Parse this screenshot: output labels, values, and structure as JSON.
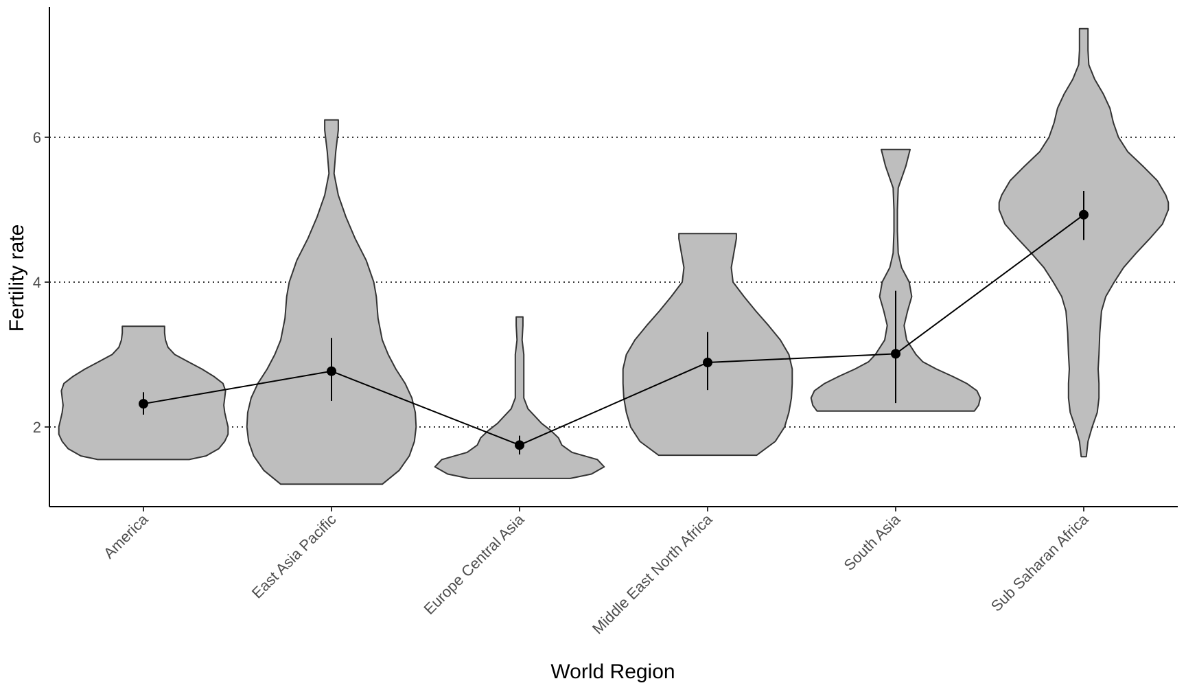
{
  "chart_data": {
    "type": "violin",
    "xlabel": "World Region",
    "ylabel": "Fertility rate",
    "ylim": [
      0.9,
      7.8
    ],
    "yticks": [
      2,
      4,
      6
    ],
    "grid": {
      "horizontal": "dotted",
      "vertical": false
    },
    "violin_fill": "#bebebe",
    "violin_stroke": "#333333",
    "line_color": "#000000",
    "categories": [
      "America",
      "East Asia Pacific",
      "Europe Central Asia",
      "Middle East North Africa",
      "South Asia",
      "Sub Saharan Africa"
    ],
    "means": [
      2.32,
      2.77,
      1.75,
      2.89,
      3.01,
      4.93
    ],
    "error_bars": [
      [
        2.17,
        2.48
      ],
      [
        2.36,
        3.23
      ],
      [
        1.62,
        1.88
      ],
      [
        2.51,
        3.31
      ],
      [
        2.33,
        3.88
      ],
      [
        4.58,
        5.26
      ]
    ],
    "violins": [
      {
        "min": 1.55,
        "max": 3.39,
        "profile": [
          [
            1.55,
            0.54
          ],
          [
            1.6,
            0.74
          ],
          [
            1.7,
            0.89
          ],
          [
            1.8,
            0.96
          ],
          [
            1.9,
            1.0
          ],
          [
            2.0,
            1.0
          ],
          [
            2.1,
            0.98
          ],
          [
            2.2,
            0.96
          ],
          [
            2.3,
            0.95
          ],
          [
            2.4,
            0.96
          ],
          [
            2.5,
            0.97
          ],
          [
            2.6,
            0.94
          ],
          [
            2.7,
            0.83
          ],
          [
            2.8,
            0.69
          ],
          [
            2.9,
            0.53
          ],
          [
            3.0,
            0.37
          ],
          [
            3.1,
            0.29
          ],
          [
            3.2,
            0.26
          ],
          [
            3.3,
            0.25
          ],
          [
            3.39,
            0.25
          ]
        ]
      },
      {
        "min": 1.21,
        "max": 6.24,
        "profile": [
          [
            1.21,
            0.6
          ],
          [
            1.4,
            0.8
          ],
          [
            1.6,
            0.92
          ],
          [
            1.8,
            0.98
          ],
          [
            2.0,
            1.0
          ],
          [
            2.2,
            0.99
          ],
          [
            2.4,
            0.95
          ],
          [
            2.6,
            0.87
          ],
          [
            2.8,
            0.76
          ],
          [
            3.0,
            0.67
          ],
          [
            3.2,
            0.6
          ],
          [
            3.5,
            0.55
          ],
          [
            3.8,
            0.53
          ],
          [
            4.0,
            0.5
          ],
          [
            4.3,
            0.41
          ],
          [
            4.6,
            0.28
          ],
          [
            4.9,
            0.17
          ],
          [
            5.2,
            0.08
          ],
          [
            5.5,
            0.03
          ],
          [
            5.8,
            0.05
          ],
          [
            6.1,
            0.08
          ],
          [
            6.24,
            0.08
          ]
        ]
      },
      {
        "min": 1.29,
        "max": 3.52,
        "profile": [
          [
            1.29,
            0.6
          ],
          [
            1.35,
            0.85
          ],
          [
            1.45,
            1.0
          ],
          [
            1.55,
            0.92
          ],
          [
            1.65,
            0.62
          ],
          [
            1.75,
            0.5
          ],
          [
            1.85,
            0.46
          ],
          [
            1.95,
            0.37
          ],
          [
            2.05,
            0.26
          ],
          [
            2.15,
            0.18
          ],
          [
            2.25,
            0.1
          ],
          [
            2.4,
            0.05
          ],
          [
            2.6,
            0.05
          ],
          [
            2.8,
            0.05
          ],
          [
            3.0,
            0.05
          ],
          [
            3.2,
            0.03
          ],
          [
            3.4,
            0.04
          ],
          [
            3.52,
            0.04
          ]
        ]
      },
      {
        "min": 1.61,
        "max": 4.67,
        "profile": [
          [
            1.61,
            0.58
          ],
          [
            1.8,
            0.8
          ],
          [
            2.0,
            0.91
          ],
          [
            2.2,
            0.96
          ],
          [
            2.4,
            0.99
          ],
          [
            2.6,
            1.0
          ],
          [
            2.8,
            1.0
          ],
          [
            3.0,
            0.96
          ],
          [
            3.2,
            0.86
          ],
          [
            3.4,
            0.72
          ],
          [
            3.6,
            0.57
          ],
          [
            3.8,
            0.43
          ],
          [
            4.0,
            0.3
          ],
          [
            4.2,
            0.28
          ],
          [
            4.4,
            0.31
          ],
          [
            4.6,
            0.34
          ],
          [
            4.67,
            0.34
          ]
        ]
      },
      {
        "min": 2.22,
        "max": 5.83,
        "profile": [
          [
            2.22,
            0.93
          ],
          [
            2.3,
            0.98
          ],
          [
            2.4,
            1.0
          ],
          [
            2.5,
            0.96
          ],
          [
            2.6,
            0.84
          ],
          [
            2.7,
            0.67
          ],
          [
            2.8,
            0.48
          ],
          [
            2.9,
            0.32
          ],
          [
            3.0,
            0.24
          ],
          [
            3.2,
            0.13
          ],
          [
            3.4,
            0.1
          ],
          [
            3.6,
            0.14
          ],
          [
            3.8,
            0.19
          ],
          [
            4.0,
            0.16
          ],
          [
            4.2,
            0.07
          ],
          [
            4.4,
            0.03
          ],
          [
            4.7,
            0.02
          ],
          [
            5.0,
            0.02
          ],
          [
            5.3,
            0.03
          ],
          [
            5.6,
            0.12
          ],
          [
            5.83,
            0.17
          ]
        ]
      },
      {
        "min": 1.59,
        "max": 7.5,
        "profile": [
          [
            1.59,
            0.03
          ],
          [
            1.8,
            0.05
          ],
          [
            2.0,
            0.1
          ],
          [
            2.2,
            0.16
          ],
          [
            2.4,
            0.18
          ],
          [
            2.6,
            0.18
          ],
          [
            2.8,
            0.17
          ],
          [
            3.0,
            0.18
          ],
          [
            3.3,
            0.19
          ],
          [
            3.6,
            0.21
          ],
          [
            3.8,
            0.26
          ],
          [
            4.0,
            0.36
          ],
          [
            4.2,
            0.47
          ],
          [
            4.4,
            0.62
          ],
          [
            4.6,
            0.78
          ],
          [
            4.8,
            0.93
          ],
          [
            5.0,
            1.0
          ],
          [
            5.1,
            1.0
          ],
          [
            5.2,
            0.97
          ],
          [
            5.4,
            0.87
          ],
          [
            5.6,
            0.7
          ],
          [
            5.8,
            0.52
          ],
          [
            6.0,
            0.41
          ],
          [
            6.2,
            0.35
          ],
          [
            6.4,
            0.31
          ],
          [
            6.6,
            0.23
          ],
          [
            6.8,
            0.13
          ],
          [
            7.0,
            0.06
          ],
          [
            7.2,
            0.05
          ],
          [
            7.4,
            0.05
          ],
          [
            7.5,
            0.05
          ]
        ]
      }
    ]
  }
}
